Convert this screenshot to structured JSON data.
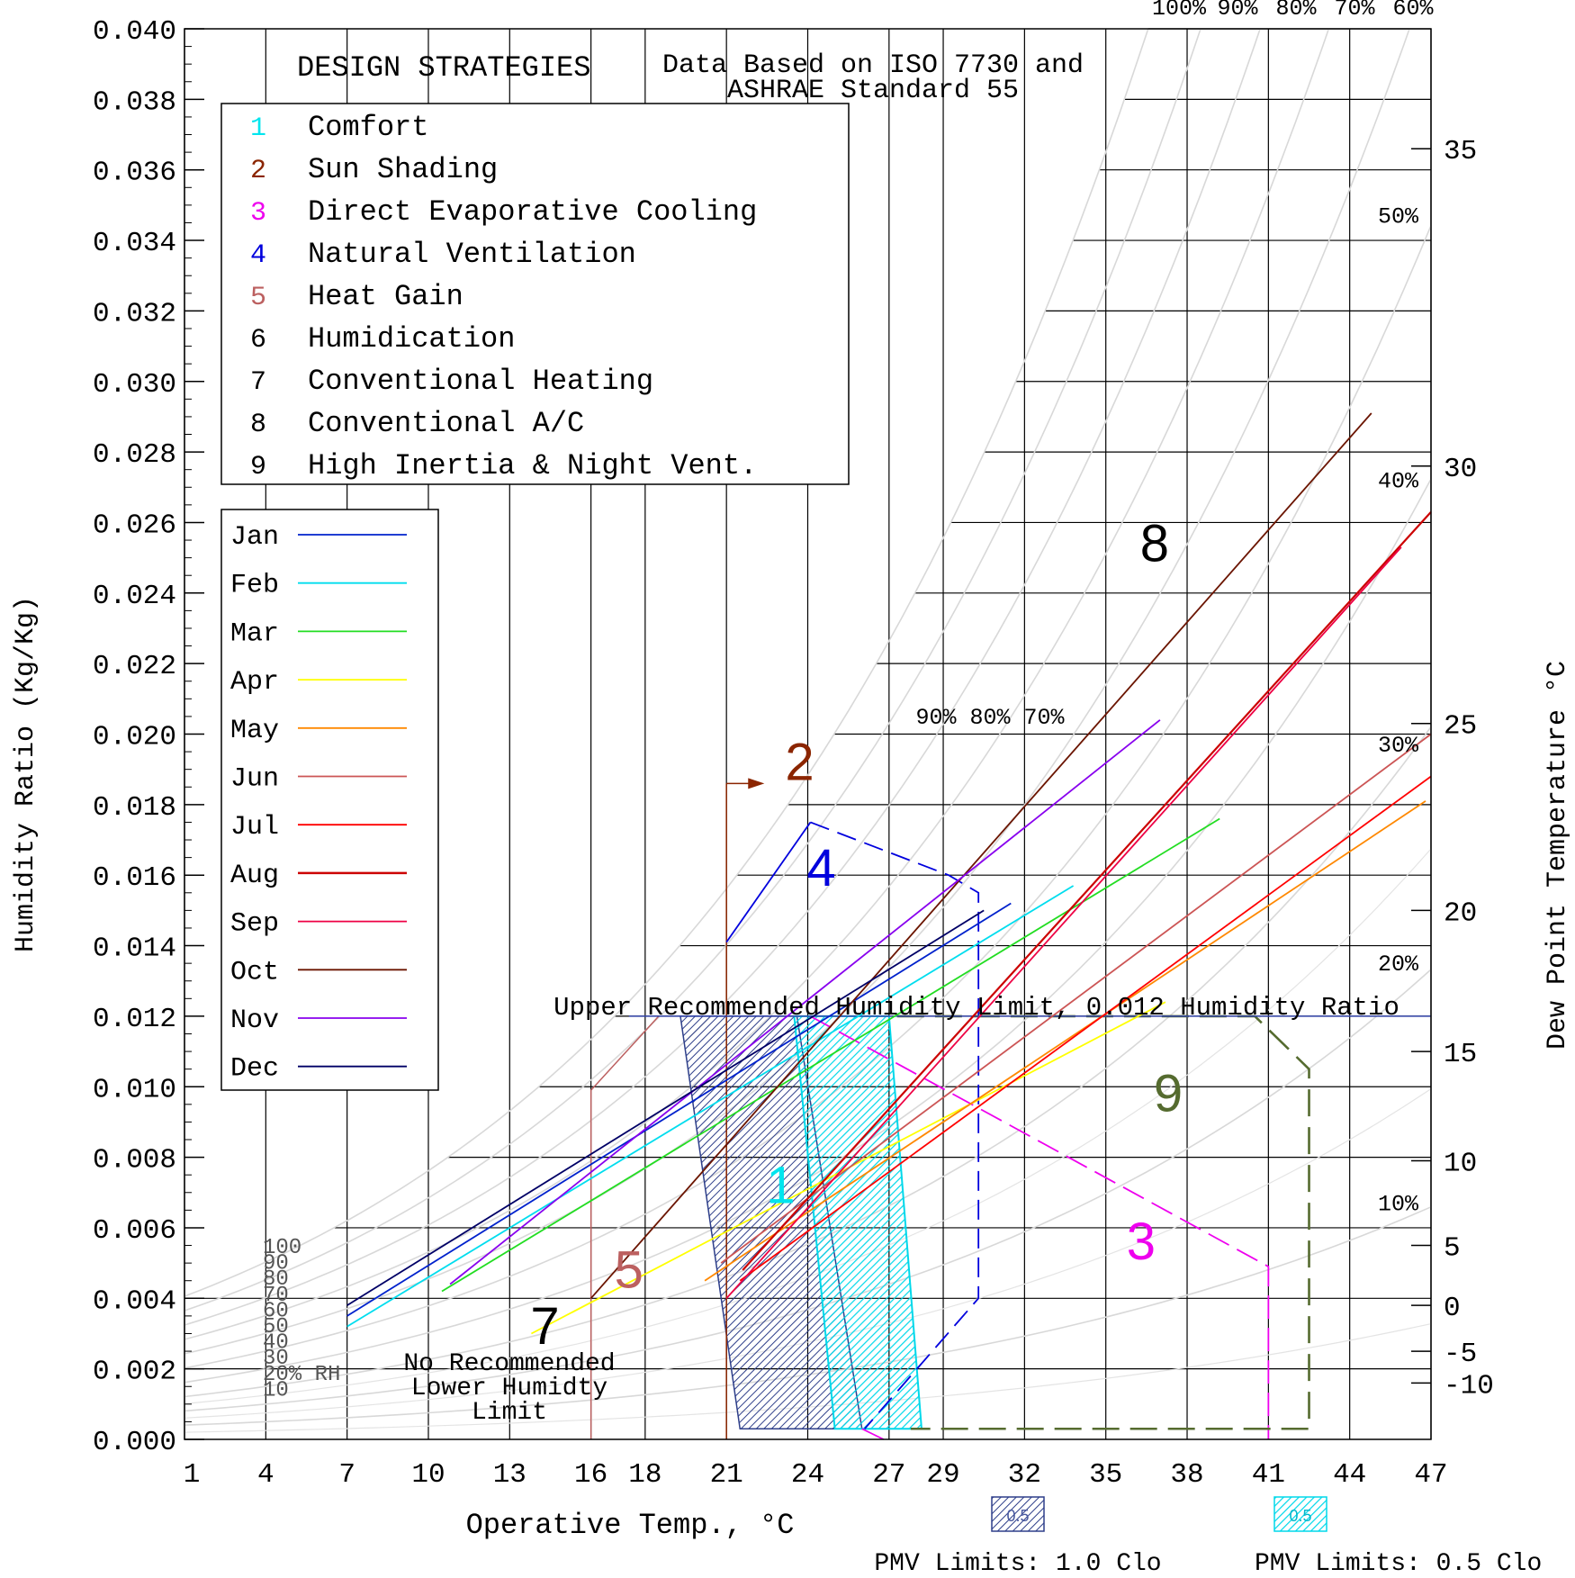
{
  "chart_data": {
    "type": "line",
    "title": "DESIGN STRATEGIES",
    "subtitle_lines": [
      "Data Based on ISO 7730 and",
      "ASHRAE Standard 55"
    ],
    "xlabel": "Operative Temp., °C",
    "ylabel": "Humidity Ratio (Kg/Kg)",
    "y2label": "Dew Point Temperature °C",
    "x_ticks": [
      1,
      4,
      7,
      10,
      13,
      16,
      18,
      21,
      24,
      27,
      29,
      32,
      35,
      38,
      41,
      44,
      47
    ],
    "xlim": [
      1,
      47
    ],
    "ylim": [
      0,
      0.04
    ],
    "y_ticks": [
      "0.000",
      "0.002",
      "0.004",
      "0.006",
      "0.008",
      "0.010",
      "0.012",
      "0.014",
      "0.016",
      "0.018",
      "0.020",
      "0.022",
      "0.024",
      "0.026",
      "0.028",
      "0.030",
      "0.032",
      "0.034",
      "0.036",
      "0.038",
      "0.040"
    ],
    "dew_point_ticks": [
      {
        "label": "35",
        "w": 0.0366
      },
      {
        "label": "30",
        "w": 0.0276
      },
      {
        "label": "25",
        "w": 0.0203
      },
      {
        "label": "20",
        "w": 0.015
      },
      {
        "label": "15",
        "w": 0.011
      },
      {
        "label": "10",
        "w": 0.0079
      },
      {
        "label": "5",
        "w": 0.0055
      },
      {
        "label": "0",
        "w": 0.0038
      },
      {
        "label": "-5",
        "w": 0.0025
      },
      {
        "label": "-10",
        "w": 0.0016
      }
    ],
    "rh_labels_top": [
      "100%",
      "90%",
      "80%",
      "70%",
      "60%"
    ],
    "rh_labels_right": [
      {
        "label": "50%",
        "t": 46.6,
        "w": 0.0345
      },
      {
        "label": "40%",
        "t": 46.6,
        "w": 0.027
      },
      {
        "label": "30%",
        "t": 46.6,
        "w": 0.0195
      },
      {
        "label": "20%",
        "t": 46.6,
        "w": 0.0133
      },
      {
        "label": "10%",
        "t": 46.6,
        "w": 0.0065
      }
    ],
    "rh_labels_mid": "90% 80% 70%",
    "rh_labels_left": [
      "100",
      "90",
      "80",
      "70",
      "60",
      "50",
      "40",
      "30",
      "20% RH",
      "10"
    ],
    "strategies": [
      {
        "num": "1",
        "name": "Comfort",
        "color": "#00e5ee"
      },
      {
        "num": "2",
        "name": "Sun Shading",
        "color": "#8b2500"
      },
      {
        "num": "3",
        "name": "Direct Evaporative Cooling",
        "color": "#ee00ee"
      },
      {
        "num": "4",
        "name": "Natural Ventilation",
        "color": "#0000dd"
      },
      {
        "num": "5",
        "name": "Heat Gain",
        "color": "#bc6060"
      },
      {
        "num": "6",
        "name": "Humidication",
        "color": "#000000"
      },
      {
        "num": "7",
        "name": "Conventional Heating",
        "color": "#000000"
      },
      {
        "num": "8",
        "name": "Conventional A/C",
        "color": "#000000"
      },
      {
        "num": "9",
        "name": "High Inertia & Night Vent.",
        "color": "#000000"
      }
    ],
    "series": [
      {
        "name": "Jan",
        "color": "#0022cc",
        "x": [
          7,
          31.5
        ],
        "y": [
          0.0035,
          0.0152
        ]
      },
      {
        "name": "Feb",
        "color": "#00ddee",
        "x": [
          7,
          33.8
        ],
        "y": [
          0.0032,
          0.0157
        ]
      },
      {
        "name": "Mar",
        "color": "#22dd22",
        "x": [
          10.5,
          39.2
        ],
        "y": [
          0.0042,
          0.0176
        ]
      },
      {
        "name": "Apr",
        "color": "#ffff00",
        "x": [
          13.8,
          37.2
        ],
        "y": [
          0.003,
          0.0124
        ]
      },
      {
        "name": "May",
        "color": "#ff8800",
        "x": [
          20.2,
          46.8
        ],
        "y": [
          0.0045,
          0.0181
        ]
      },
      {
        "name": "Jun",
        "color": "#cc5555",
        "x": [
          20.8,
          47
        ],
        "y": [
          0.005,
          0.02
        ]
      },
      {
        "name": "Jul",
        "color": "#ff0000",
        "x": [
          21.5,
          47
        ],
        "y": [
          0.0045,
          0.0188
        ]
      },
      {
        "name": "Aug",
        "color": "#cc0000",
        "x": [
          21.6,
          47
        ],
        "y": [
          0.0048,
          0.0263
        ]
      },
      {
        "name": "Sep",
        "color": "#ee0044",
        "x": [
          21.0,
          45.9
        ],
        "y": [
          0.004,
          0.0253
        ]
      },
      {
        "name": "Oct",
        "color": "#6b1500",
        "x": [
          16,
          44.8
        ],
        "y": [
          0.004,
          0.0291
        ]
      },
      {
        "name": "Nov",
        "color": "#8800ee",
        "x": [
          10.8,
          37.0
        ],
        "y": [
          0.0044,
          0.0204
        ]
      },
      {
        "name": "Dec",
        "color": "#000066",
        "x": [
          7,
          30.5
        ],
        "y": [
          0.0038,
          0.015
        ]
      }
    ],
    "grid": true,
    "legend_placement": "top-left",
    "annotations": {
      "upper_limit": "Upper Recommended Humidity Limit, 0.012 Humidity Ratio",
      "no_lower_limit": [
        "No Recommended",
        "Lower Humidty",
        "Limit"
      ],
      "pmv_1": "PMV Limits: 1.0 Clo",
      "pmv_05": "PMV Limits: 0.5 Clo",
      "pmv_box_1_label": "0.5",
      "pmv_box_05_label": "0.5",
      "zone_numbers": [
        "1",
        "2",
        "3",
        "4",
        "5",
        "7",
        "8",
        "9"
      ]
    }
  }
}
